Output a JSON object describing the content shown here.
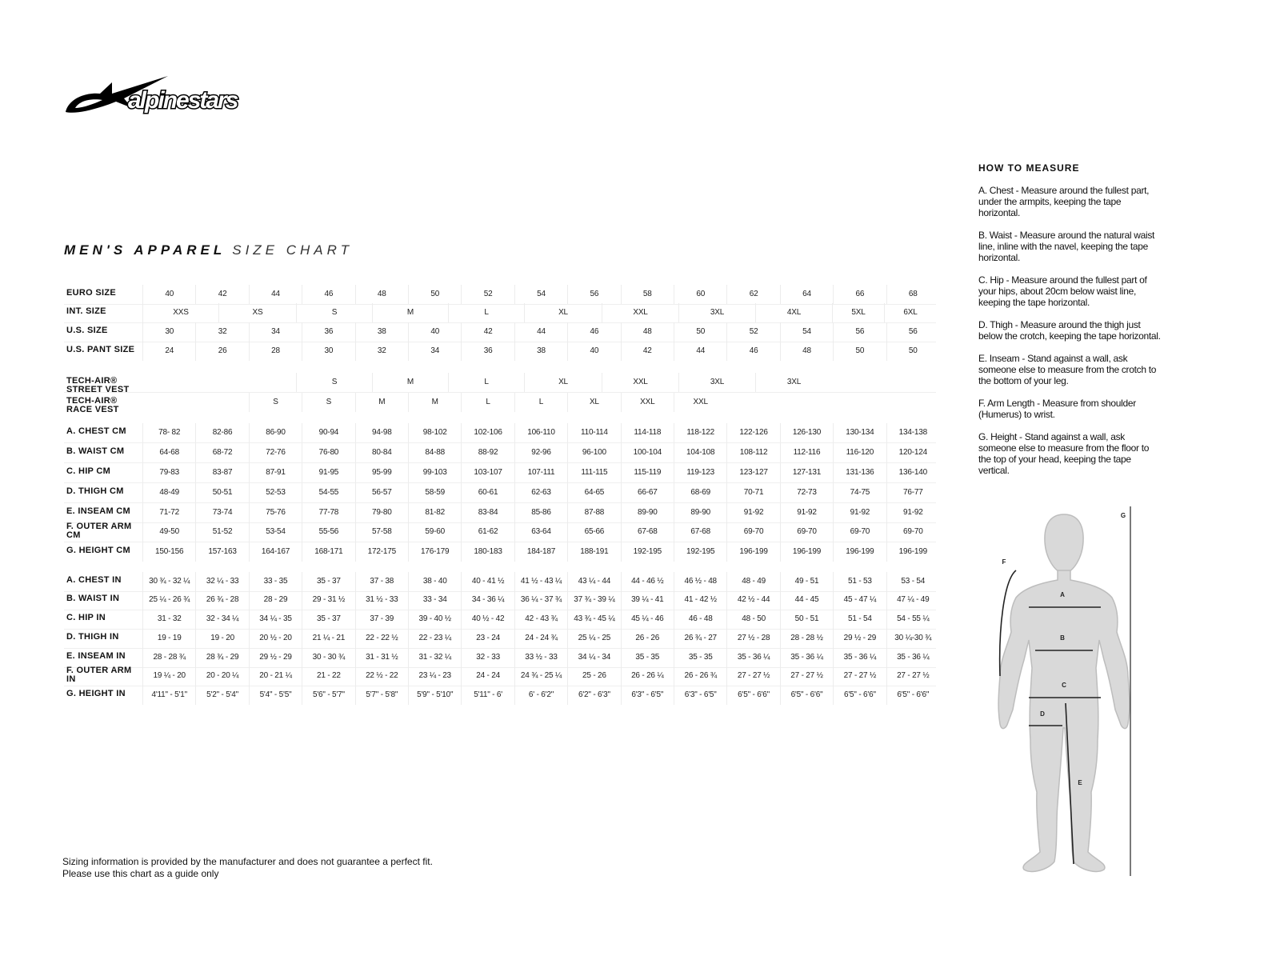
{
  "brand": {
    "name": "alpinestars"
  },
  "title": {
    "bold": "MEN'S APPAREL",
    "light": "SIZE CHART"
  },
  "size_rows": [
    {
      "key": "euro",
      "label": "EURO SIZE",
      "grid": "euro",
      "values": [
        "40",
        "42",
        "44",
        "46",
        "48",
        "50",
        "52",
        "54",
        "56",
        "58",
        "60",
        "62",
        "64",
        "66",
        "68"
      ]
    },
    {
      "key": "int",
      "label": "INT. SIZE",
      "grid": "int",
      "values": [
        "XXS",
        "XS",
        "S",
        "M",
        "L",
        "XL",
        "XXL",
        "3XL",
        "4XL",
        "5XL",
        "6XL"
      ]
    },
    {
      "key": "us",
      "label": "U.S. SIZE",
      "grid": "euro",
      "values": [
        "30",
        "32",
        "34",
        "36",
        "38",
        "40",
        "42",
        "44",
        "46",
        "48",
        "50",
        "52",
        "54",
        "56",
        "56"
      ]
    },
    {
      "key": "pant",
      "label": "U.S. PANT SIZE",
      "grid": "euro",
      "values": [
        "24",
        "26",
        "28",
        "30",
        "32",
        "34",
        "36",
        "38",
        "40",
        "42",
        "44",
        "46",
        "48",
        "50",
        "50"
      ]
    }
  ],
  "vest_rows": [
    {
      "key": "street",
      "label": "TECH-AIR® STREET VEST",
      "grid": "int",
      "values": [
        "",
        "",
        "S",
        "M",
        "L",
        "XL",
        "XXL",
        "3XL",
        "3XL",
        "",
        ""
      ]
    },
    {
      "key": "race",
      "label": "TECH-AIR® RACE VEST",
      "grid": "euro",
      "values": [
        "",
        "",
        "S",
        "S",
        "M",
        "M",
        "L",
        "L",
        "XL",
        "XXL",
        "XXL",
        "",
        "",
        "",
        ""
      ]
    }
  ],
  "cm_rows": [
    {
      "label": "A. CHEST CM",
      "values": [
        "78- 82",
        "82-86",
        "86-90",
        "90-94",
        "94-98",
        "98-102",
        "102-106",
        "106-110",
        "110-114",
        "114-118",
        "118-122",
        "122-126",
        "126-130",
        "130-134",
        "134-138"
      ]
    },
    {
      "label": "B. WAIST CM",
      "values": [
        "64-68",
        "68-72",
        "72-76",
        "76-80",
        "80-84",
        "84-88",
        "88-92",
        "92-96",
        "96-100",
        "100-104",
        "104-108",
        "108-112",
        "112-116",
        "116-120",
        "120-124"
      ]
    },
    {
      "label": "C. HIP CM",
      "values": [
        "79-83",
        "83-87",
        "87-91",
        "91-95",
        "95-99",
        "99-103",
        "103-107",
        "107-111",
        "111-115",
        "115-119",
        "119-123",
        "123-127",
        "127-131",
        "131-136",
        "136-140"
      ]
    },
    {
      "label": "D. THIGH CM",
      "values": [
        "48-49",
        "50-51",
        "52-53",
        "54-55",
        "56-57",
        "58-59",
        "60-61",
        "62-63",
        "64-65",
        "66-67",
        "68-69",
        "70-71",
        "72-73",
        "74-75",
        "76-77"
      ]
    },
    {
      "label": "E. INSEAM CM",
      "values": [
        "71-72",
        "73-74",
        "75-76",
        "77-78",
        "79-80",
        "81-82",
        "83-84",
        "85-86",
        "87-88",
        "89-90",
        "89-90",
        "91-92",
        "91-92",
        "91-92",
        "91-92"
      ]
    },
    {
      "label": "F. OUTER ARM CM",
      "values": [
        "49-50",
        "51-52",
        "53-54",
        "55-56",
        "57-58",
        "59-60",
        "61-62",
        "63-64",
        "65-66",
        "67-68",
        "67-68",
        "69-70",
        "69-70",
        "69-70",
        "69-70"
      ]
    },
    {
      "label": "G. HEIGHT CM",
      "values": [
        "150-156",
        "157-163",
        "164-167",
        "168-171",
        "172-175",
        "176-179",
        "180-183",
        "184-187",
        "188-191",
        "192-195",
        "192-195",
        "196-199",
        "196-199",
        "196-199",
        "196-199"
      ]
    }
  ],
  "in_rows": [
    {
      "label": "A. CHEST IN",
      "values": [
        "30 ¾ - 32 ¼",
        "32 ¼ - 33",
        "33  - 35",
        "35  - 37",
        "37 - 38",
        "38  - 40",
        "40  - 41 ½",
        "41 ½ - 43 ¼",
        "43 ¼ - 44",
        "44  - 46 ½",
        "46 ½ - 48",
        "48 - 49",
        "49  - 51",
        "51  - 53",
        "53  - 54"
      ]
    },
    {
      "label": "B. WAIST IN",
      "values": [
        "25 ¼ - 26 ¾",
        "26 ¾ - 28",
        "28  - 29",
        "29  - 31 ½",
        "31 ½ - 33",
        "33  - 34",
        "34  - 36 ¼",
        "36 ¼ - 37 ¾",
        "37 ¾ - 39 ¼",
        "39 ¼ - 41",
        "41 - 42 ½",
        "42 ½ - 44",
        "44  - 45",
        "45  - 47 ¼",
        "47 ¼ - 49"
      ]
    },
    {
      "label": "C. HIP IN",
      "values": [
        "31  - 32",
        "32  - 34 ¼",
        "34 ¼ - 35",
        "35  - 37",
        "37  - 39",
        "39 - 40 ½",
        "40 ½ - 42",
        "42  - 43 ¾",
        "43 ¾ - 45 ¼",
        "45 ¼ - 46",
        "46  - 48",
        "48  - 50",
        "50 - 51",
        "51  - 54",
        "54  - 55 ¼"
      ]
    },
    {
      "label": "D. THIGH IN",
      "values": [
        "19  - 19",
        "19  - 20",
        "20 ½ - 20",
        "21 ¼ - 21",
        "22 - 22 ½",
        "22  - 23 ¼",
        "23  - 24",
        "24  - 24 ¾",
        "25 ¼ - 25",
        "26 - 26",
        "26 ¾ - 27",
        "27 ½ - 28",
        "28  - 28 ½",
        "29 ½ - 29",
        "30 ¼-30 ¾"
      ]
    },
    {
      "label": "E. INSEAM IN",
      "values": [
        "28 - 28 ¾",
        "28 ¾ - 29",
        "29 ½ - 29",
        "30  - 30 ¾",
        "31  - 31 ½",
        "31  - 32 ¼",
        "32  - 33",
        "33 ½ - 33",
        "34 ¼ - 34",
        "35 - 35",
        "35 - 35",
        "35  - 36 ¼",
        "35  - 36 ¼",
        "35  - 36 ¼",
        "35  - 36 ¼"
      ]
    },
    {
      "label": "F. OUTER ARM IN",
      "values": [
        "19 ¼ - 20",
        "20  - 20 ¼",
        "20  - 21 ¼",
        "21  - 22",
        "22 ½ - 22",
        "23 ¼ - 23",
        "24 - 24",
        "24 ¾ - 25 ¼",
        "25  - 26",
        "26  - 26 ¼",
        "26  - 26 ¾",
        "27  - 27 ½",
        "27  - 27 ½",
        "27  - 27 ½",
        "27  - 27 ½"
      ]
    },
    {
      "label": "G. HEIGHT IN",
      "values": [
        "4'11\" - 5'1\"",
        "5'2\" - 5'4\"",
        "5'4\" - 5'5\"",
        "5'6\" - 5'7\"",
        "5'7\" - 5'8\"",
        "5'9\" - 5'10\"",
        "5'11\" - 6'",
        "6' - 6'2\"",
        "6'2\" - 6'3\"",
        "6'3\" - 6'5\"",
        "6'3\" - 6'5\"",
        "6'5\" - 6'6\"",
        "6'5\" - 6'6\"",
        "6'5\" - 6'6\"",
        "6'5\" - 6'6\""
      ]
    }
  ],
  "disclaimer": {
    "line1": "Sizing information is provided by the manufacturer and does not guarantee a perfect fit.",
    "line2": "Please use this chart as a guide only"
  },
  "how_to_measure": {
    "heading": "HOW TO MEASURE",
    "items": [
      "A. Chest - Measure around the fullest part, under the armpits, keeping the tape horizontal.",
      "B. Waist - Measure around the natural waist line, inline with the navel, keeping the tape horizontal.",
      "C. Hip - Measure around the fullest part of your hips, about 20cm below waist line, keeping the tape horizontal.",
      "D. Thigh - Measure around the thigh just below the crotch, keeping the tape horizontal.",
      "E. Inseam - Stand against a wall, ask someone else to measure from the crotch to the bottom of your leg.",
      "F. Arm Length - Measure from shoulder (Humerus) to wrist.",
      "G. Height - Stand against a wall, ask someone else to measure from the floor to the top of your head, keeping the tape vertical."
    ]
  },
  "figure": {
    "labels": {
      "a": "A",
      "b": "B",
      "c": "C",
      "d": "D",
      "e": "E",
      "f": "F",
      "g": "G"
    }
  },
  "colors": {
    "body": "#d9d9d9",
    "body_outline": "#bdbdbd",
    "text": "#111111",
    "grid": "#ececec"
  }
}
